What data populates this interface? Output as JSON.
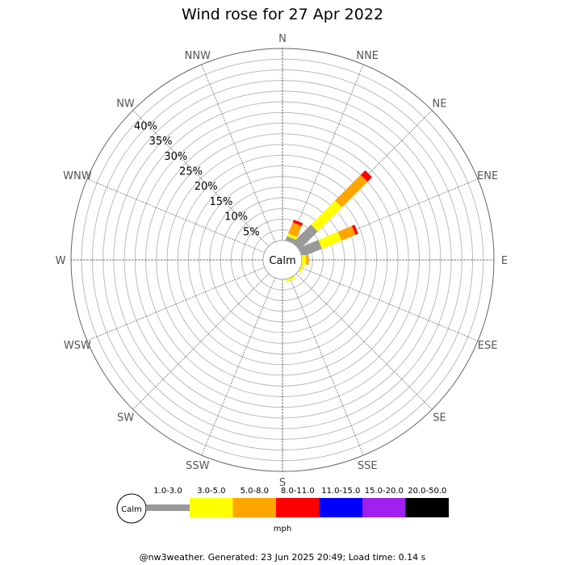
{
  "title": "Wind rose for 27 Apr 2022",
  "footer": "@nw3weather. Generated: 23 Jun 2025 20:49; Load time: 0.14 s",
  "chart_data": {
    "type": "wind-rose",
    "title": "Wind rose for 27 Apr 2022",
    "directions": [
      "N",
      "NNE",
      "NE",
      "ENE",
      "E",
      "ESE",
      "SE",
      "SSE",
      "S",
      "SSW",
      "SW",
      "WSW",
      "W",
      "WNW",
      "NW",
      "NNW"
    ],
    "radial_ticks": [
      "5%",
      "10%",
      "15%",
      "20%",
      "25%",
      "30%",
      "35%",
      "40%"
    ],
    "radial_tick_values": [
      5,
      10,
      15,
      20,
      25,
      30,
      35,
      40
    ],
    "radial_max": 45,
    "calm_label": "Calm",
    "unit": "mph",
    "speed_bins": [
      {
        "label": "1.0-3.0",
        "color": "#999999"
      },
      {
        "label": "3.0-5.0",
        "color": "#ffff00"
      },
      {
        "label": "5.0-8.0",
        "color": "#ffa500"
      },
      {
        "label": "8.0-11.0",
        "color": "#ff0000"
      },
      {
        "label": "11.0-15.0",
        "color": "#0000ff"
      },
      {
        "label": "15.0-20.0",
        "color": "#a020f0"
      },
      {
        "label": "20.0-50.0",
        "color": "#000000"
      }
    ],
    "series": [
      {
        "direction": "NNE",
        "segments": [
          1.0,
          0.7,
          2.8,
          0.7,
          0,
          0,
          0
        ]
      },
      {
        "direction": "NE",
        "segments": [
          6.0,
          8.0,
          8.5,
          1.5,
          0,
          0,
          0
        ]
      },
      {
        "direction": "ENE",
        "segments": [
          5.0,
          5.0,
          3.5,
          0.7,
          0,
          0,
          0
        ]
      },
      {
        "direction": "E",
        "segments": [
          0,
          1.0,
          0.6,
          0,
          0,
          0,
          0
        ]
      },
      {
        "direction": "ESE",
        "segments": [
          0,
          0.6,
          0,
          0,
          0,
          0,
          0
        ]
      },
      {
        "direction": "SSE",
        "segments": [
          0,
          0.6,
          0,
          0,
          0,
          0,
          0
        ]
      }
    ]
  }
}
